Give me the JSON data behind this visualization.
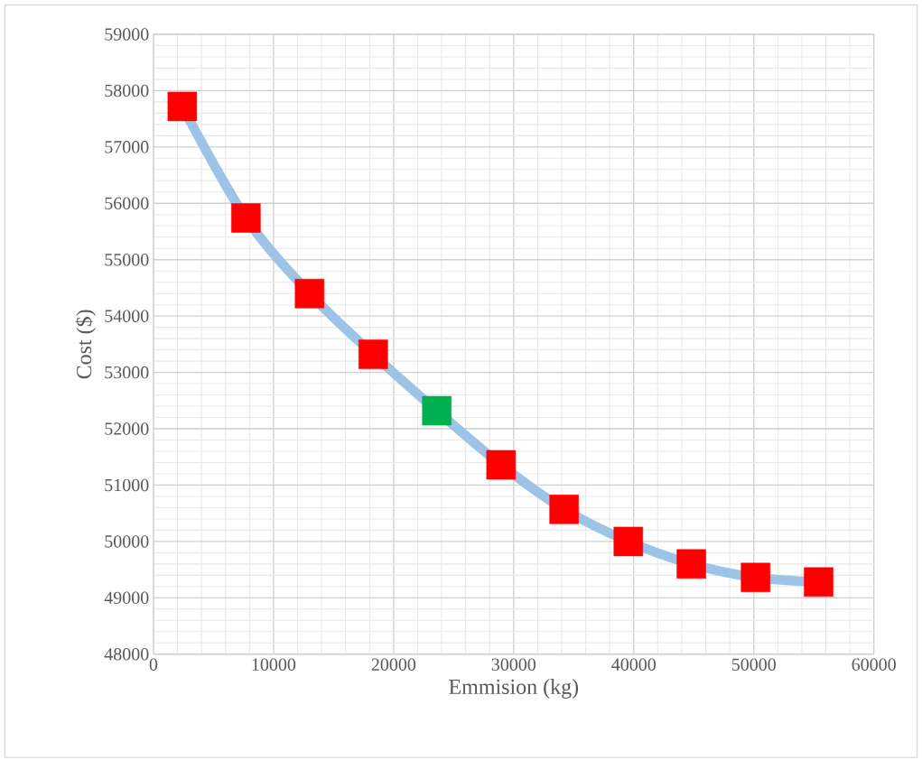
{
  "chart_data": {
    "type": "line",
    "xlabel": "Emmision (kg)",
    "ylabel": "Cost ($)",
    "x": [
      2400,
      7700,
      13000,
      18300,
      23600,
      28950,
      34200,
      39550,
      44800,
      50150,
      55400
    ],
    "series": [
      {
        "color": "#9dc3e6",
        "colors": [
          "#ff0000",
          "#ff0000",
          "#ff0000",
          "#ff0000",
          "#00b050",
          "#ff0000",
          "#ff0000",
          "#ff0000",
          "#ff0000",
          "#ff0000",
          "#ff0000"
        ],
        "values": [
          57720,
          55740,
          54400,
          53320,
          52320,
          51360,
          50570,
          50000,
          49600,
          49360,
          49280
        ]
      }
    ],
    "marker": "square",
    "xlim": [
      0,
      60000
    ],
    "xticks": [
      0,
      10000,
      20000,
      30000,
      40000,
      50000,
      60000
    ],
    "ylim": [
      48000,
      59000
    ],
    "yticks": [
      48000,
      49000,
      50000,
      51000,
      52000,
      53000,
      54000,
      55000,
      56000,
      57000,
      58000,
      59000
    ],
    "grid": true
  }
}
